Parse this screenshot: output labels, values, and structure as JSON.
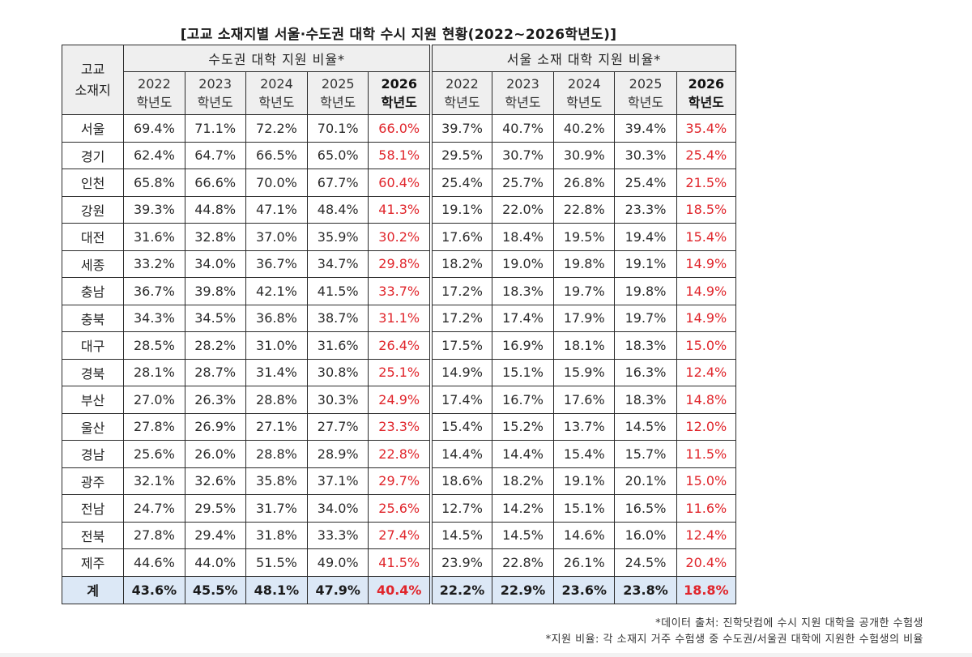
{
  "title": "[고교 소재지별 서울·수도권 대학 수시 지원 현황(2022~2026학년도)]",
  "header": {
    "region_label_line1": "고교",
    "region_label_line2": "소재지",
    "groups": [
      {
        "label": "수도권 대학 지원 비율*"
      },
      {
        "label": "서울 소재 대학 지원 비율*"
      }
    ],
    "years": [
      {
        "year": "2022",
        "suffix": "학년도"
      },
      {
        "year": "2023",
        "suffix": "학년도"
      },
      {
        "year": "2024",
        "suffix": "학년도"
      },
      {
        "year": "2025",
        "suffix": "학년도"
      },
      {
        "year": "2026",
        "suffix": "학년도"
      }
    ]
  },
  "rows": [
    {
      "region": "서울",
      "capital": [
        "69.4%",
        "71.1%",
        "72.2%",
        "70.1%",
        "66.0%"
      ],
      "seoul": [
        "39.7%",
        "40.7%",
        "40.2%",
        "39.4%",
        "35.4%"
      ]
    },
    {
      "region": "경기",
      "capital": [
        "62.4%",
        "64.7%",
        "66.5%",
        "65.0%",
        "58.1%"
      ],
      "seoul": [
        "29.5%",
        "30.7%",
        "30.9%",
        "30.3%",
        "25.4%"
      ]
    },
    {
      "region": "인천",
      "capital": [
        "65.8%",
        "66.6%",
        "70.0%",
        "67.7%",
        "60.4%"
      ],
      "seoul": [
        "25.4%",
        "25.7%",
        "26.8%",
        "25.4%",
        "21.5%"
      ]
    },
    {
      "region": "강원",
      "capital": [
        "39.3%",
        "44.8%",
        "47.1%",
        "48.4%",
        "41.3%"
      ],
      "seoul": [
        "19.1%",
        "22.0%",
        "22.8%",
        "23.3%",
        "18.5%"
      ]
    },
    {
      "region": "대전",
      "capital": [
        "31.6%",
        "32.8%",
        "37.0%",
        "35.9%",
        "30.2%"
      ],
      "seoul": [
        "17.6%",
        "18.4%",
        "19.5%",
        "19.4%",
        "15.4%"
      ]
    },
    {
      "region": "세종",
      "capital": [
        "33.2%",
        "34.0%",
        "36.7%",
        "34.7%",
        "29.8%"
      ],
      "seoul": [
        "18.2%",
        "19.0%",
        "19.8%",
        "19.1%",
        "14.9%"
      ]
    },
    {
      "region": "충남",
      "capital": [
        "36.7%",
        "39.8%",
        "42.1%",
        "41.5%",
        "33.7%"
      ],
      "seoul": [
        "17.2%",
        "18.3%",
        "19.7%",
        "19.8%",
        "14.9%"
      ]
    },
    {
      "region": "충북",
      "capital": [
        "34.3%",
        "34.5%",
        "36.8%",
        "38.7%",
        "31.1%"
      ],
      "seoul": [
        "17.2%",
        "17.4%",
        "17.9%",
        "19.7%",
        "14.9%"
      ]
    },
    {
      "region": "대구",
      "capital": [
        "28.5%",
        "28.2%",
        "31.0%",
        "31.6%",
        "26.4%"
      ],
      "seoul": [
        "17.5%",
        "16.9%",
        "18.1%",
        "18.3%",
        "15.0%"
      ]
    },
    {
      "region": "경북",
      "capital": [
        "28.1%",
        "28.7%",
        "31.4%",
        "30.8%",
        "25.1%"
      ],
      "seoul": [
        "14.9%",
        "15.1%",
        "15.9%",
        "16.3%",
        "12.4%"
      ]
    },
    {
      "region": "부산",
      "capital": [
        "27.0%",
        "26.3%",
        "28.8%",
        "30.3%",
        "24.9%"
      ],
      "seoul": [
        "17.4%",
        "16.7%",
        "17.6%",
        "18.3%",
        "14.8%"
      ]
    },
    {
      "region": "울산",
      "capital": [
        "27.8%",
        "26.9%",
        "27.1%",
        "27.7%",
        "23.3%"
      ],
      "seoul": [
        "15.4%",
        "15.2%",
        "13.7%",
        "14.5%",
        "12.0%"
      ]
    },
    {
      "region": "경남",
      "capital": [
        "25.6%",
        "26.0%",
        "28.8%",
        "28.9%",
        "22.8%"
      ],
      "seoul": [
        "14.4%",
        "14.4%",
        "15.4%",
        "15.7%",
        "11.5%"
      ]
    },
    {
      "region": "광주",
      "capital": [
        "32.1%",
        "32.6%",
        "35.8%",
        "37.1%",
        "29.7%"
      ],
      "seoul": [
        "18.6%",
        "18.2%",
        "19.1%",
        "20.1%",
        "15.0%"
      ]
    },
    {
      "region": "전남",
      "capital": [
        "24.7%",
        "29.5%",
        "31.7%",
        "34.0%",
        "25.6%"
      ],
      "seoul": [
        "12.7%",
        "14.2%",
        "15.1%",
        "16.5%",
        "11.6%"
      ]
    },
    {
      "region": "전북",
      "capital": [
        "27.8%",
        "29.4%",
        "31.8%",
        "33.3%",
        "27.4%"
      ],
      "seoul": [
        "14.5%",
        "14.5%",
        "14.6%",
        "16.0%",
        "12.4%"
      ]
    },
    {
      "region": "제주",
      "capital": [
        "44.6%",
        "44.0%",
        "51.5%",
        "49.0%",
        "41.5%"
      ],
      "seoul": [
        "23.9%",
        "22.8%",
        "26.1%",
        "24.5%",
        "20.4%"
      ]
    }
  ],
  "total": {
    "region": "계",
    "capital": [
      "43.6%",
      "45.5%",
      "48.1%",
      "47.9%",
      "40.4%"
    ],
    "seoul": [
      "22.2%",
      "22.9%",
      "23.6%",
      "23.8%",
      "18.8%"
    ]
  },
  "footnotes": [
    "*데이터 출처: 진학닷컴에 수시 지원 대학을 공개한 수험생",
    "*지원 비율: 각 소재지 거주 수험생 중 수도권/서울권 대학에 지원한 수험생의 비율"
  ],
  "colors": {
    "highlight_2026": "#e0252b",
    "header_bg": "#efefef",
    "total_row_bg": "#dce8f6",
    "border": "#2b2b2b"
  }
}
